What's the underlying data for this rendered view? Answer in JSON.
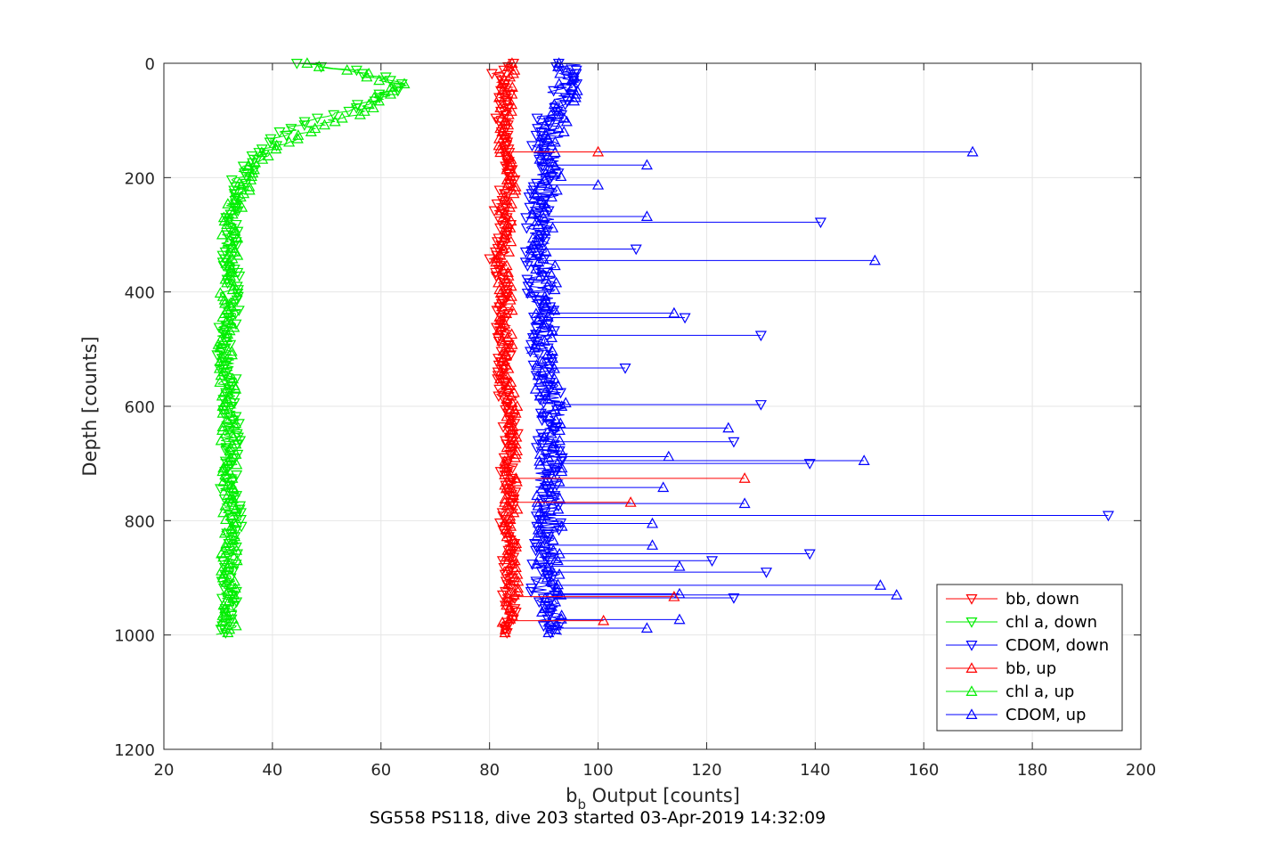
{
  "chart_data": {
    "type": "line",
    "xlabel": "b_b Output [counts]",
    "xlabel_base": "b",
    "xlabel_sub": "b",
    "xlabel_rest": " Output [counts]",
    "ylabel": "Depth [counts]",
    "caption": "SG558 PS118, dive 203 started 03-Apr-2019 14:32:09",
    "xlim": [
      20,
      200
    ],
    "ylim": [
      0,
      1200
    ],
    "y_reversed": true,
    "xticks": [
      20,
      40,
      60,
      80,
      100,
      120,
      140,
      160,
      180,
      200
    ],
    "yticks": [
      0,
      200,
      400,
      600,
      800,
      1000,
      1200
    ],
    "grid": true,
    "legend_position": "bottom-right",
    "colors": {
      "bb": "#ff0000",
      "chl": "#00ee00",
      "cdom": "#0000ff",
      "grid": "#e6e6e6",
      "axis": "#262626"
    },
    "series": [
      {
        "name": "bb, down",
        "color": "#ff0000",
        "marker": "triangle-down",
        "points": [
          [
            84,
            0
          ],
          [
            81,
            20
          ],
          [
            83,
            50
          ],
          [
            82,
            100
          ],
          [
            83,
            150
          ],
          [
            84,
            200
          ],
          [
            82,
            250
          ],
          [
            83,
            300
          ],
          [
            81,
            350
          ],
          [
            83,
            400
          ],
          [
            82,
            450
          ],
          [
            83,
            500
          ],
          [
            82,
            550
          ],
          [
            83,
            600
          ],
          [
            84,
            650
          ],
          [
            83,
            700
          ],
          [
            84,
            750
          ],
          [
            83,
            800
          ],
          [
            84,
            850
          ],
          [
            83,
            900
          ],
          [
            84,
            950
          ],
          [
            82,
            1000
          ]
        ]
      },
      {
        "name": "chl a, down",
        "color": "#00ee00",
        "marker": "triangle-down",
        "points": [
          [
            46,
            0
          ],
          [
            53,
            10
          ],
          [
            60,
            25
          ],
          [
            64,
            40
          ],
          [
            60,
            60
          ],
          [
            52,
            90
          ],
          [
            44,
            110
          ],
          [
            39,
            150
          ],
          [
            36,
            180
          ],
          [
            34,
            200
          ],
          [
            33,
            250
          ],
          [
            32,
            300
          ],
          [
            32,
            350
          ],
          [
            33,
            400
          ],
          [
            32,
            450
          ],
          [
            31,
            500
          ],
          [
            32,
            550
          ],
          [
            32,
            600
          ],
          [
            33,
            650
          ],
          [
            32,
            700
          ],
          [
            32,
            750
          ],
          [
            33,
            800
          ],
          [
            32,
            850
          ],
          [
            32,
            900
          ],
          [
            32,
            950
          ],
          [
            30,
            1000
          ]
        ]
      },
      {
        "name": "CDOM, down",
        "color": "#0000ff",
        "marker": "triangle-down",
        "points": [
          [
            94,
            0
          ],
          [
            95,
            20
          ],
          [
            93,
            50
          ],
          [
            91,
            100
          ],
          [
            90,
            150
          ],
          [
            91,
            200
          ],
          [
            89,
            250
          ],
          [
            89,
            300
          ],
          [
            89,
            350
          ],
          [
            89,
            400
          ],
          [
            90,
            450
          ],
          [
            89,
            500
          ],
          [
            90,
            550
          ],
          [
            92,
            600
          ],
          [
            91,
            650
          ],
          [
            91,
            700
          ],
          [
            90,
            750
          ],
          [
            91,
            800
          ],
          [
            90,
            850
          ],
          [
            90,
            900
          ],
          [
            90,
            950
          ],
          [
            92,
            1000
          ]
        ]
      },
      {
        "name": "bb, up",
        "color": "#ff0000",
        "marker": "triangle-up",
        "points": [
          [
            84,
            0
          ],
          [
            83,
            50
          ],
          [
            83,
            100
          ],
          [
            83,
            150
          ],
          [
            84,
            200
          ],
          [
            83,
            250
          ],
          [
            83,
            300
          ],
          [
            82,
            350
          ],
          [
            83,
            400
          ],
          [
            83,
            450
          ],
          [
            83,
            500
          ],
          [
            83,
            550
          ],
          [
            84,
            600
          ],
          [
            84,
            650
          ],
          [
            84,
            700
          ],
          [
            84,
            750
          ],
          [
            84,
            800
          ],
          [
            84,
            850
          ],
          [
            84,
            900
          ],
          [
            84,
            950
          ],
          [
            83,
            1000
          ]
        ]
      },
      {
        "name": "chl a, up",
        "color": "#00ee00",
        "marker": "triangle-up",
        "points": [
          [
            46,
            0
          ],
          [
            55,
            15
          ],
          [
            63,
            35
          ],
          [
            60,
            60
          ],
          [
            55,
            90
          ],
          [
            48,
            110
          ],
          [
            40,
            150
          ],
          [
            36,
            180
          ],
          [
            33,
            250
          ],
          [
            32,
            300
          ],
          [
            32,
            400
          ],
          [
            31,
            500
          ],
          [
            32,
            600
          ],
          [
            32,
            700
          ],
          [
            32,
            800
          ],
          [
            32,
            900
          ],
          [
            32,
            1000
          ]
        ]
      },
      {
        "name": "CDOM, up",
        "color": "#0000ff",
        "marker": "triangle-up",
        "points": [
          [
            95,
            0
          ],
          [
            94,
            50
          ],
          [
            92,
            100
          ],
          [
            91,
            150
          ],
          [
            91,
            200
          ],
          [
            90,
            250
          ],
          [
            90,
            300
          ],
          [
            90,
            350
          ],
          [
            90,
            400
          ],
          [
            90,
            450
          ],
          [
            90,
            500
          ],
          [
            90,
            550
          ],
          [
            92,
            600
          ],
          [
            92,
            650
          ],
          [
            91,
            700
          ],
          [
            91,
            750
          ],
          [
            91,
            800
          ],
          [
            91,
            850
          ],
          [
            91,
            900
          ],
          [
            92,
            950
          ],
          [
            92,
            1000
          ]
        ]
      }
    ],
    "spikes": [
      {
        "series": "CDOM, up",
        "x": 169,
        "y": 155
      },
      {
        "series": "CDOM, up",
        "x": 109,
        "y": 178
      },
      {
        "series": "CDOM, up",
        "x": 100,
        "y": 213
      },
      {
        "series": "CDOM, up",
        "x": 109,
        "y": 268
      },
      {
        "series": "CDOM, down",
        "x": 141,
        "y": 278
      },
      {
        "series": "CDOM, down",
        "x": 107,
        "y": 325
      },
      {
        "series": "CDOM, up",
        "x": 151,
        "y": 345
      },
      {
        "series": "CDOM, up",
        "x": 114,
        "y": 437
      },
      {
        "series": "CDOM, down",
        "x": 116,
        "y": 445
      },
      {
        "series": "CDOM, down",
        "x": 130,
        "y": 476
      },
      {
        "series": "CDOM, down",
        "x": 105,
        "y": 533
      },
      {
        "series": "CDOM, down",
        "x": 130,
        "y": 597
      },
      {
        "series": "CDOM, up",
        "x": 124,
        "y": 638
      },
      {
        "series": "CDOM, down",
        "x": 125,
        "y": 662
      },
      {
        "series": "CDOM, up",
        "x": 113,
        "y": 688
      },
      {
        "series": "CDOM, up",
        "x": 149,
        "y": 695
      },
      {
        "series": "CDOM, down",
        "x": 139,
        "y": 700
      },
      {
        "series": "CDOM, up",
        "x": 112,
        "y": 742
      },
      {
        "series": "CDOM, up",
        "x": 127,
        "y": 770
      },
      {
        "series": "CDOM, down",
        "x": 194,
        "y": 791
      },
      {
        "series": "CDOM, up",
        "x": 110,
        "y": 805
      },
      {
        "series": "CDOM, up",
        "x": 110,
        "y": 843
      },
      {
        "series": "CDOM, down",
        "x": 139,
        "y": 858
      },
      {
        "series": "CDOM, down",
        "x": 121,
        "y": 870
      },
      {
        "series": "CDOM, up",
        "x": 115,
        "y": 880
      },
      {
        "series": "CDOM, down",
        "x": 131,
        "y": 890
      },
      {
        "series": "CDOM, up",
        "x": 152,
        "y": 913
      },
      {
        "series": "CDOM, up",
        "x": 155,
        "y": 930
      },
      {
        "series": "CDOM, up",
        "x": 115,
        "y": 928
      },
      {
        "series": "CDOM, down",
        "x": 125,
        "y": 935
      },
      {
        "series": "CDOM, up",
        "x": 115,
        "y": 973
      },
      {
        "series": "CDOM, up",
        "x": 109,
        "y": 988
      },
      {
        "series": "bb, up",
        "x": 100,
        "y": 155
      },
      {
        "series": "bb, up",
        "x": 127,
        "y": 726
      },
      {
        "series": "bb, up",
        "x": 106,
        "y": 768
      },
      {
        "series": "bb, up",
        "x": 114,
        "y": 933
      },
      {
        "series": "bb, up",
        "x": 101,
        "y": 975
      }
    ]
  }
}
